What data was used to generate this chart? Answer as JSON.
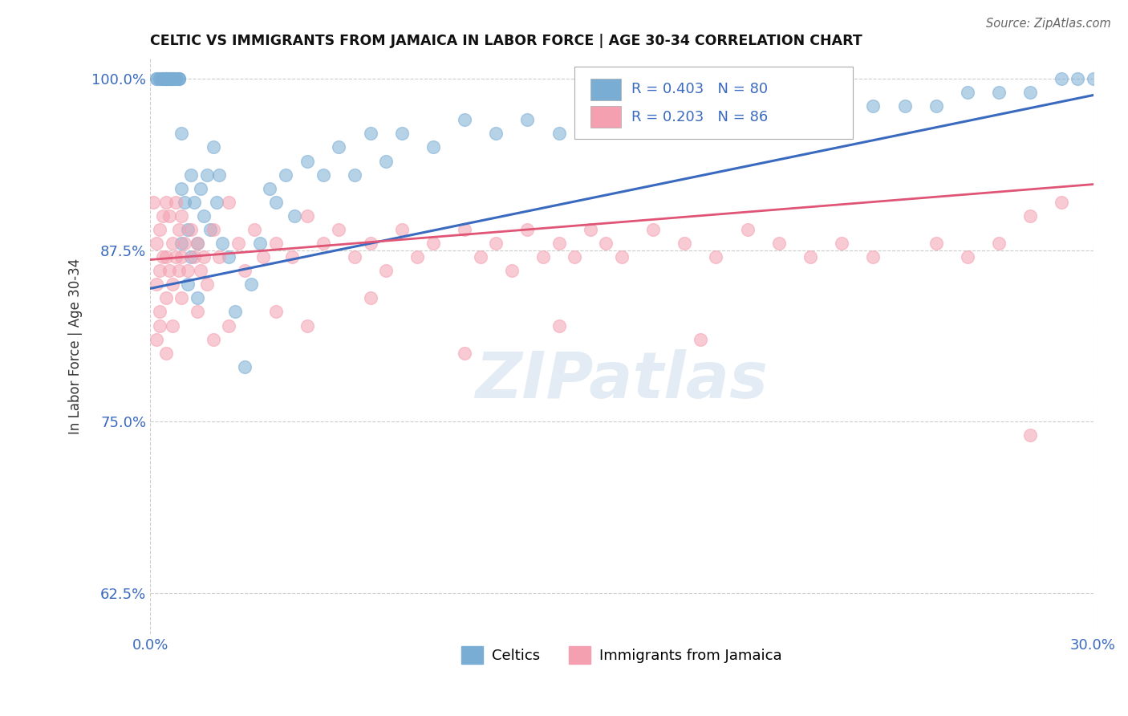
{
  "title": "CELTIC VS IMMIGRANTS FROM JAMAICA IN LABOR FORCE | AGE 30-34 CORRELATION CHART",
  "source": "Source: ZipAtlas.com",
  "ylabel": "In Labor Force | Age 30-34",
  "xlim": [
    0.0,
    0.3
  ],
  "ylim": [
    0.595,
    1.015
  ],
  "xticks": [
    0.0,
    0.3
  ],
  "xticklabels": [
    "0.0%",
    "30.0%"
  ],
  "yticks": [
    0.625,
    0.75,
    0.875,
    1.0
  ],
  "yticklabels": [
    "62.5%",
    "75.0%",
    "87.5%",
    "100.0%"
  ],
  "celtic_color": "#7aadd4",
  "jamaica_color": "#f4a0b0",
  "trendline_celtic_color": "#3a6abf",
  "trendline_jamaica_color": "#e05575",
  "legend_r_celtic": "R = 0.403",
  "legend_n_celtic": "N = 80",
  "legend_r_jamaica": "R = 0.203",
  "legend_n_jamaica": "N = 86",
  "legend_label_celtic": "Celtics",
  "legend_label_jamaica": "Immigrants from Jamaica",
  "watermark": "ZIPatlas",
  "celtic_x": [
    0.002,
    0.002,
    0.003,
    0.003,
    0.004,
    0.004,
    0.004,
    0.005,
    0.005,
    0.005,
    0.005,
    0.006,
    0.006,
    0.006,
    0.007,
    0.007,
    0.007,
    0.008,
    0.008,
    0.009,
    0.009,
    0.009,
    0.01,
    0.01,
    0.01,
    0.011,
    0.012,
    0.012,
    0.013,
    0.013,
    0.014,
    0.015,
    0.015,
    0.016,
    0.017,
    0.018,
    0.019,
    0.02,
    0.021,
    0.022,
    0.023,
    0.025,
    0.027,
    0.03,
    0.032,
    0.035,
    0.038,
    0.04,
    0.043,
    0.046,
    0.05,
    0.055,
    0.06,
    0.065,
    0.07,
    0.075,
    0.08,
    0.09,
    0.1,
    0.11,
    0.12,
    0.13,
    0.14,
    0.15,
    0.16,
    0.17,
    0.18,
    0.19,
    0.2,
    0.21,
    0.22,
    0.23,
    0.24,
    0.25,
    0.26,
    0.27,
    0.28,
    0.29,
    0.295,
    0.3
  ],
  "celtic_y": [
    1.0,
    1.0,
    1.0,
    1.0,
    1.0,
    1.0,
    1.0,
    1.0,
    1.0,
    1.0,
    1.0,
    1.0,
    1.0,
    1.0,
    1.0,
    1.0,
    1.0,
    1.0,
    1.0,
    1.0,
    1.0,
    1.0,
    0.96,
    0.92,
    0.88,
    0.91,
    0.89,
    0.85,
    0.87,
    0.93,
    0.91,
    0.88,
    0.84,
    0.92,
    0.9,
    0.93,
    0.89,
    0.95,
    0.91,
    0.93,
    0.88,
    0.87,
    0.83,
    0.79,
    0.85,
    0.88,
    0.92,
    0.91,
    0.93,
    0.9,
    0.94,
    0.93,
    0.95,
    0.93,
    0.96,
    0.94,
    0.96,
    0.95,
    0.97,
    0.96,
    0.97,
    0.96,
    0.97,
    0.97,
    0.97,
    0.97,
    0.98,
    0.97,
    0.97,
    0.97,
    0.98,
    0.98,
    0.98,
    0.98,
    0.99,
    0.99,
    0.99,
    1.0,
    1.0,
    1.0
  ],
  "jamaica_x": [
    0.001,
    0.002,
    0.002,
    0.002,
    0.003,
    0.003,
    0.003,
    0.004,
    0.004,
    0.005,
    0.005,
    0.005,
    0.006,
    0.006,
    0.007,
    0.007,
    0.008,
    0.008,
    0.009,
    0.009,
    0.01,
    0.01,
    0.011,
    0.012,
    0.013,
    0.014,
    0.015,
    0.016,
    0.017,
    0.018,
    0.02,
    0.022,
    0.025,
    0.028,
    0.03,
    0.033,
    0.036,
    0.04,
    0.045,
    0.05,
    0.055,
    0.06,
    0.065,
    0.07,
    0.075,
    0.08,
    0.085,
    0.09,
    0.1,
    0.105,
    0.11,
    0.115,
    0.12,
    0.125,
    0.13,
    0.135,
    0.14,
    0.145,
    0.15,
    0.16,
    0.17,
    0.18,
    0.19,
    0.2,
    0.21,
    0.22,
    0.23,
    0.25,
    0.26,
    0.27,
    0.28,
    0.29,
    0.003,
    0.005,
    0.007,
    0.01,
    0.015,
    0.02,
    0.025,
    0.04,
    0.05,
    0.07,
    0.1,
    0.13,
    0.175,
    0.28
  ],
  "jamaica_y": [
    0.91,
    0.88,
    0.85,
    0.81,
    0.89,
    0.86,
    0.82,
    0.9,
    0.87,
    0.91,
    0.87,
    0.84,
    0.9,
    0.86,
    0.88,
    0.85,
    0.91,
    0.87,
    0.89,
    0.86,
    0.9,
    0.87,
    0.88,
    0.86,
    0.89,
    0.87,
    0.88,
    0.86,
    0.87,
    0.85,
    0.89,
    0.87,
    0.91,
    0.88,
    0.86,
    0.89,
    0.87,
    0.88,
    0.87,
    0.9,
    0.88,
    0.89,
    0.87,
    0.88,
    0.86,
    0.89,
    0.87,
    0.88,
    0.89,
    0.87,
    0.88,
    0.86,
    0.89,
    0.87,
    0.88,
    0.87,
    0.89,
    0.88,
    0.87,
    0.89,
    0.88,
    0.87,
    0.89,
    0.88,
    0.87,
    0.88,
    0.87,
    0.88,
    0.87,
    0.88,
    0.9,
    0.91,
    0.83,
    0.8,
    0.82,
    0.84,
    0.83,
    0.81,
    0.82,
    0.83,
    0.82,
    0.84,
    0.8,
    0.82,
    0.81,
    0.74
  ],
  "celtic_trendline_x": [
    0.0,
    0.3
  ],
  "celtic_trendline_y": [
    0.847,
    0.988
  ],
  "jamaica_trendline_x": [
    0.0,
    0.3
  ],
  "jamaica_trendline_y": [
    0.868,
    0.923
  ]
}
